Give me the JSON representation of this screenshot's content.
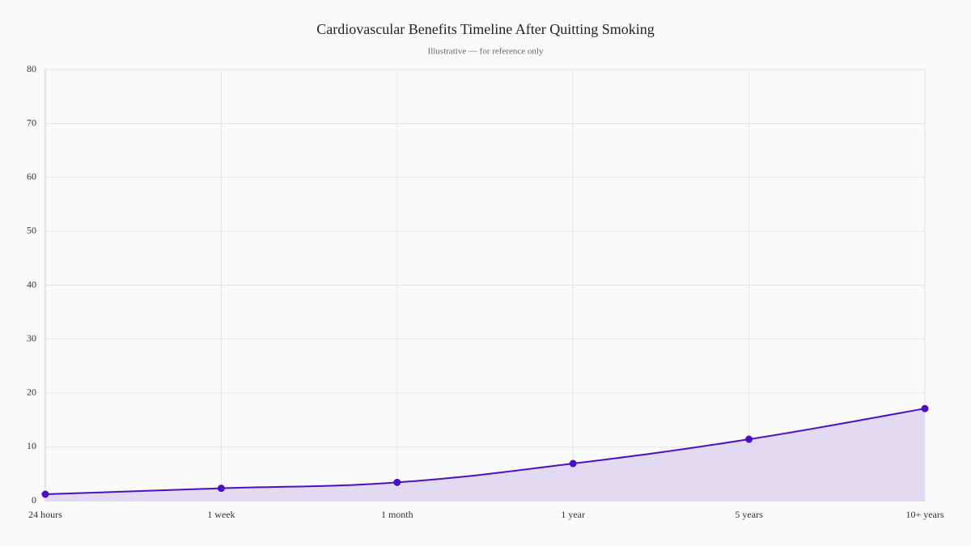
{
  "chart_data": {
    "type": "area",
    "title": "Cardiovascular Benefits Timeline After Quitting Smoking",
    "subtitle": "Illustrative — for reference only",
    "categories": [
      "24 hours",
      "1 week",
      "1 month",
      "1 year",
      "5 years",
      "10+ years"
    ],
    "values": [
      1.2,
      2.3,
      3.4,
      6.9,
      11.4,
      17.1
    ],
    "color": "#4a10c8",
    "area_color": "#e2d9f3",
    "ylim": [
      0,
      80
    ],
    "yticks": [
      0,
      10,
      20,
      30,
      40,
      50,
      60,
      70,
      80
    ],
    "grid": true
  }
}
